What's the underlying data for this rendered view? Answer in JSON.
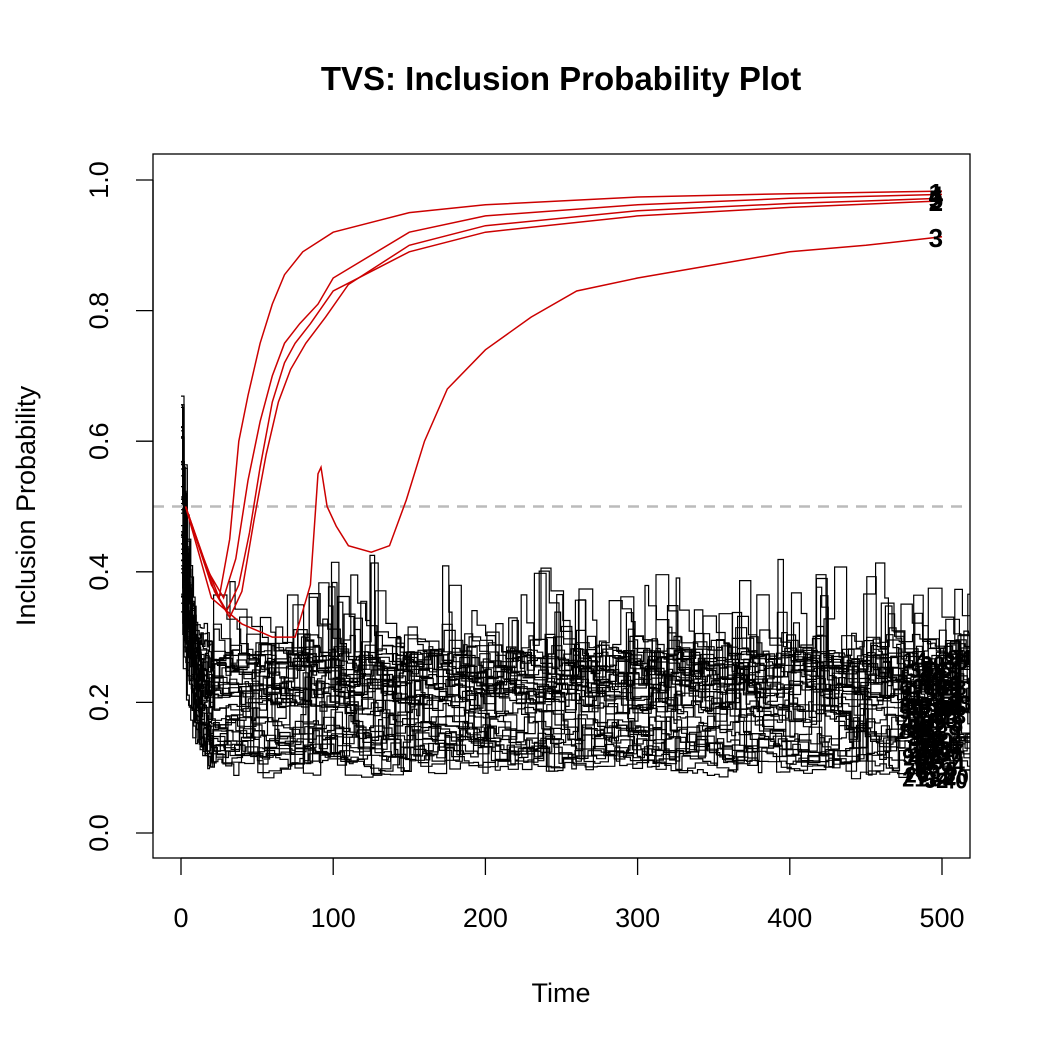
{
  "chart_data": {
    "type": "line",
    "title": "TVS: Inclusion Probability Plot",
    "xlabel": "Time",
    "ylabel": "Inclusion Probability",
    "xlim": [
      0,
      520
    ],
    "ylim": [
      0.0,
      1.0
    ],
    "x_ticks": [
      0,
      100,
      200,
      300,
      400,
      500
    ],
    "x_tick_labels": [
      "0",
      "100",
      "200",
      "300",
      "400",
      "500"
    ],
    "y_ticks": [
      0.0,
      0.2,
      0.4,
      0.6,
      0.8,
      1.0
    ],
    "y_tick_labels": [
      "0.0",
      "0.2",
      "0.4",
      "0.6",
      "0.8",
      "1.0"
    ],
    "threshold": {
      "value": 0.5,
      "color": "#bbbbbb",
      "style": "dashed"
    },
    "grid": false,
    "colors": {
      "selected": "#cc0000",
      "unselected": "#000000"
    },
    "selected_series": [
      {
        "name": "1",
        "label_y": 0.982,
        "points": [
          [
            3,
            0.5
          ],
          [
            15,
            0.42
          ],
          [
            25,
            0.36
          ],
          [
            32,
            0.45
          ],
          [
            38,
            0.6
          ],
          [
            44,
            0.67
          ],
          [
            52,
            0.75
          ],
          [
            60,
            0.81
          ],
          [
            68,
            0.855
          ],
          [
            80,
            0.89
          ],
          [
            100,
            0.92
          ],
          [
            150,
            0.95
          ],
          [
            200,
            0.962
          ],
          [
            300,
            0.974
          ],
          [
            400,
            0.979
          ],
          [
            500,
            0.983
          ]
        ]
      },
      {
        "name": "2",
        "label_y": 0.968,
        "points": [
          [
            3,
            0.5
          ],
          [
            20,
            0.38
          ],
          [
            30,
            0.34
          ],
          [
            38,
            0.38
          ],
          [
            45,
            0.46
          ],
          [
            52,
            0.56
          ],
          [
            60,
            0.66
          ],
          [
            68,
            0.72
          ],
          [
            75,
            0.75
          ],
          [
            85,
            0.78
          ],
          [
            100,
            0.83
          ],
          [
            150,
            0.89
          ],
          [
            200,
            0.92
          ],
          [
            300,
            0.945
          ],
          [
            400,
            0.958
          ],
          [
            500,
            0.968
          ]
        ]
      },
      {
        "name": "3",
        "label_y": 0.913,
        "points": [
          [
            3,
            0.5
          ],
          [
            20,
            0.36
          ],
          [
            40,
            0.32
          ],
          [
            60,
            0.3
          ],
          [
            75,
            0.3
          ],
          [
            85,
            0.38
          ],
          [
            90,
            0.55
          ],
          [
            92,
            0.56
          ],
          [
            96,
            0.5
          ],
          [
            102,
            0.47
          ],
          [
            110,
            0.44
          ],
          [
            125,
            0.43
          ],
          [
            137,
            0.44
          ],
          [
            148,
            0.51
          ],
          [
            160,
            0.6
          ],
          [
            175,
            0.68
          ],
          [
            200,
            0.74
          ],
          [
            230,
            0.79
          ],
          [
            260,
            0.83
          ],
          [
            300,
            0.85
          ],
          [
            350,
            0.87
          ],
          [
            400,
            0.89
          ],
          [
            450,
            0.9
          ],
          [
            500,
            0.913
          ]
        ]
      },
      {
        "name": "4",
        "label_y": 0.978,
        "points": [
          [
            3,
            0.5
          ],
          [
            18,
            0.4
          ],
          [
            28,
            0.36
          ],
          [
            36,
            0.42
          ],
          [
            44,
            0.54
          ],
          [
            52,
            0.63
          ],
          [
            60,
            0.7
          ],
          [
            68,
            0.75
          ],
          [
            78,
            0.78
          ],
          [
            90,
            0.81
          ],
          [
            100,
            0.85
          ],
          [
            150,
            0.92
          ],
          [
            200,
            0.945
          ],
          [
            300,
            0.962
          ],
          [
            400,
            0.972
          ],
          [
            500,
            0.978
          ]
        ]
      },
      {
        "name": "5",
        "label_y": 0.972,
        "points": [
          [
            3,
            0.5
          ],
          [
            22,
            0.37
          ],
          [
            32,
            0.33
          ],
          [
            40,
            0.37
          ],
          [
            48,
            0.48
          ],
          [
            56,
            0.58
          ],
          [
            64,
            0.66
          ],
          [
            72,
            0.71
          ],
          [
            82,
            0.75
          ],
          [
            95,
            0.79
          ],
          [
            110,
            0.84
          ],
          [
            150,
            0.9
          ],
          [
            200,
            0.93
          ],
          [
            300,
            0.953
          ],
          [
            400,
            0.964
          ],
          [
            500,
            0.972
          ]
        ]
      }
    ],
    "unselected_series_note": "Dozens of black step lines start near 0.33-0.67 at Time 0-10, drop to 0.1-0.3 by Time 20, then fluctuate between about 0.08 and 0.35 through Time 520; clustered overlapping numeric labels at the right edge."
  }
}
